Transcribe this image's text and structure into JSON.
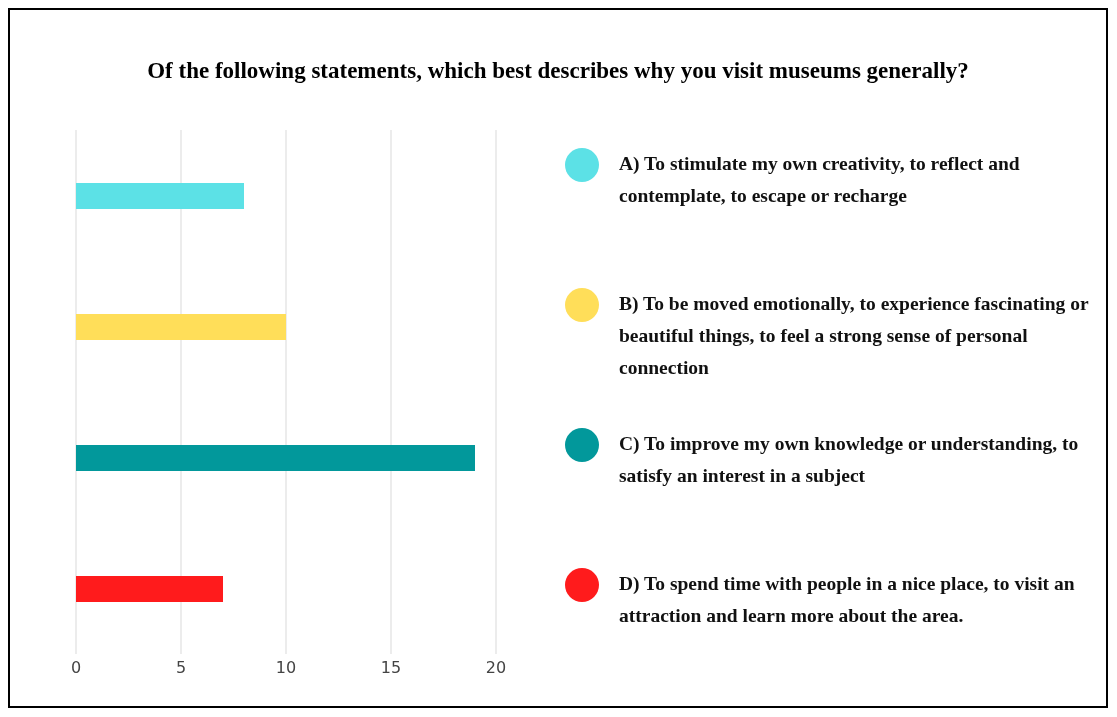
{
  "chart_data": {
    "type": "bar",
    "orientation": "horizontal",
    "stacked": true,
    "title": "Of the following statements, which best describes why you visit museums generally?",
    "categories": [
      null,
      null,
      null,
      null
    ],
    "series": [
      {
        "name": "A) To stimulate my own creativity, to reflect and contemplate, to escape or recharge",
        "color": "#5ce1e6",
        "values": [
          8,
          null,
          null,
          null
        ]
      },
      {
        "name": "B) To be moved emotionally, to experience fascinating or beautiful things, to feel a strong sense of personal connection",
        "color": "#ffde59",
        "values": [
          null,
          10,
          null,
          null
        ]
      },
      {
        "name": "C) To improve my own knowledge or understanding, to satisfy an interest in a subject",
        "color": "#02989b",
        "values": [
          null,
          null,
          19,
          null
        ]
      },
      {
        "name": "D) To spend time with people in a nice place, to visit an attraction and learn more about the area.",
        "color": "#ff1b1c",
        "values": [
          null,
          null,
          null,
          7
        ]
      }
    ],
    "xlim": [
      0,
      20
    ],
    "xticks": [
      0,
      5,
      10,
      15,
      20
    ],
    "grid": "x",
    "legend": "right",
    "tick_labels": "x"
  }
}
